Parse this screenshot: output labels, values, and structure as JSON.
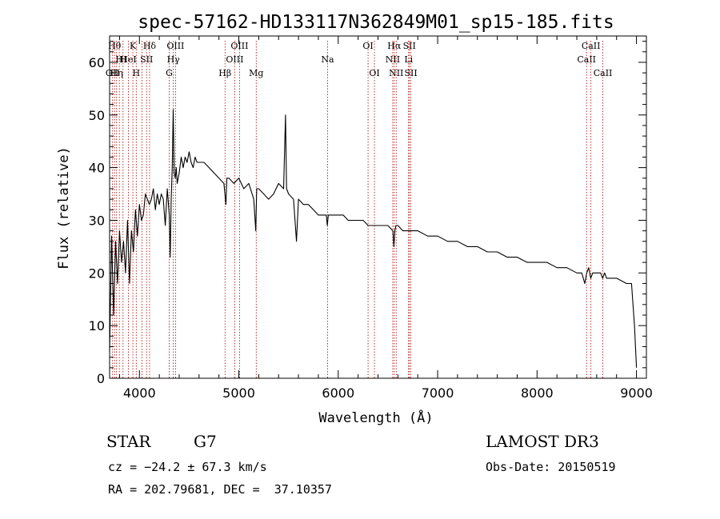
{
  "chart_data": {
    "type": "line",
    "title": "spec-57162-HD133117N362849M01_sp15-185.fits",
    "xlabel": "Wavelength (Å)",
    "ylabel": "Flux (relative)",
    "xlim": [
      3700,
      9100
    ],
    "ylim": [
      0,
      65
    ],
    "xticks": [
      4000,
      5000,
      6000,
      7000,
      8000,
      9000
    ],
    "yticks": [
      0,
      10,
      20,
      30,
      40,
      50,
      60
    ],
    "grid": false,
    "line_color": "#000000",
    "marker_color": "#aa0000",
    "series": [
      {
        "x": [
          3700,
          3720,
          3740,
          3760,
          3780,
          3800,
          3820,
          3840,
          3860,
          3880,
          3900,
          3920,
          3940,
          3960,
          3980,
          4000,
          4020,
          4040,
          4060,
          4080,
          4100,
          4120,
          4140,
          4160,
          4180,
          4200,
          4220,
          4240,
          4260,
          4280,
          4300,
          4310,
          4320,
          4330,
          4340,
          4350,
          4360,
          4370,
          4380,
          4400,
          4420,
          4440,
          4460,
          4480,
          4500,
          4520,
          4540,
          4560,
          4580,
          4600,
          4650,
          4700,
          4750,
          4800,
          4850,
          4870,
          4880,
          4900,
          4950,
          5000,
          5050,
          5100,
          5150,
          5170,
          5180,
          5200,
          5250,
          5300,
          5350,
          5400,
          5450,
          5470,
          5480,
          5500,
          5550,
          5580,
          5600,
          5650,
          5700,
          5750,
          5800,
          5850,
          5880,
          5890,
          5900,
          5950,
          6000,
          6050,
          6100,
          6150,
          6200,
          6250,
          6300,
          6350,
          6400,
          6450,
          6500,
          6550,
          6560,
          6570,
          6580,
          6600,
          6650,
          6700,
          6750,
          6800,
          6900,
          7000,
          7100,
          7200,
          7300,
          7400,
          7500,
          7600,
          7700,
          7800,
          7900,
          8000,
          8100,
          8200,
          8300,
          8400,
          8450,
          8480,
          8500,
          8520,
          8540,
          8560,
          8600,
          8640,
          8660,
          8680,
          8700,
          8800,
          8900,
          8950,
          8980,
          9000
        ],
        "y": [
          5,
          27,
          12,
          26,
          18,
          28,
          22,
          26,
          20,
          30,
          18,
          28,
          24,
          32,
          27,
          33,
          30,
          31,
          35,
          34,
          33,
          34,
          36,
          32,
          35,
          33,
          35,
          34,
          29,
          36,
          31,
          23,
          34,
          40,
          51,
          39,
          38,
          40,
          37,
          39,
          42,
          40,
          42,
          41,
          43,
          41,
          40,
          42,
          41,
          41,
          41,
          40,
          39,
          38,
          37,
          33,
          38,
          38,
          37,
          38,
          36,
          37,
          34,
          28,
          36,
          36,
          35,
          34,
          35,
          37,
          36,
          50,
          36,
          35,
          34,
          26,
          34,
          33,
          33,
          32,
          31,
          31,
          31,
          29,
          31,
          31,
          31,
          31,
          30,
          30,
          30,
          30,
          29,
          29,
          29,
          29,
          29,
          28,
          25,
          28,
          29,
          29,
          28,
          28,
          28,
          28,
          27,
          27,
          26,
          26,
          25,
          25,
          24,
          24,
          23,
          23,
          22,
          22,
          22,
          21,
          21,
          20,
          20,
          18,
          20,
          21,
          19,
          20,
          20,
          20,
          19,
          20,
          19,
          19,
          18,
          18,
          10,
          2
        ]
      }
    ],
    "lines": [
      {
        "wl": 3750,
        "label": "Hθ",
        "row": 0
      },
      {
        "wl": 3730,
        "label": "OII",
        "row": 2
      },
      {
        "wl": 3770,
        "label": "Hη",
        "row": 2
      },
      {
        "wl": 3798,
        "label": "H",
        "row": 1
      },
      {
        "wl": 3835,
        "label": "H",
        "row": 1
      },
      {
        "wl": 3889,
        "label": "HeI",
        "row": 1
      },
      {
        "wl": 3934,
        "label": "K",
        "row": 0
      },
      {
        "wl": 3968,
        "label": "H",
        "row": 2
      },
      {
        "wl": 4026,
        "label": "",
        "row": 0
      },
      {
        "wl": 4072,
        "label": "SII",
        "row": 1
      },
      {
        "wl": 4102,
        "label": "Hδ",
        "row": 0
      },
      {
        "wl": 4300,
        "label": "G",
        "row": 2
      },
      {
        "wl": 4341,
        "label": "Hγ",
        "row": 1
      },
      {
        "wl": 4363,
        "label": "OIII",
        "row": 0
      },
      {
        "wl": 4861,
        "label": "Hβ",
        "row": 2
      },
      {
        "wl": 4959,
        "label": "OIII",
        "row": 1
      },
      {
        "wl": 5007,
        "label": "OIII",
        "row": 0
      },
      {
        "wl": 5175,
        "label": "Mg",
        "row": 2
      },
      {
        "wl": 5893,
        "label": "Na",
        "row": 1
      },
      {
        "wl": 6300,
        "label": "OI",
        "row": 0
      },
      {
        "wl": 6364,
        "label": "OI",
        "row": 2
      },
      {
        "wl": 6548,
        "label": "NII",
        "row": 1
      },
      {
        "wl": 6563,
        "label": "Hα",
        "row": 0
      },
      {
        "wl": 6583,
        "label": "NII",
        "row": 2
      },
      {
        "wl": 6708,
        "label": "Li",
        "row": 1
      },
      {
        "wl": 6716,
        "label": "SII",
        "row": 0
      },
      {
        "wl": 6731,
        "label": "SII",
        "row": 2
      },
      {
        "wl": 8498,
        "label": "CaII",
        "row": 1
      },
      {
        "wl": 8542,
        "label": "CaII",
        "row": 0
      },
      {
        "wl": 8662,
        "label": "CaII",
        "row": 2
      }
    ]
  },
  "info": {
    "class_label": "STAR",
    "subclass": "G7",
    "survey": "LAMOST DR3",
    "cz": "cz = −24.2 ± 67.3 km/s",
    "obs_date": "Obs-Date: 20150519",
    "coords": "RA = 202.79681, DEC =  37.10357"
  }
}
